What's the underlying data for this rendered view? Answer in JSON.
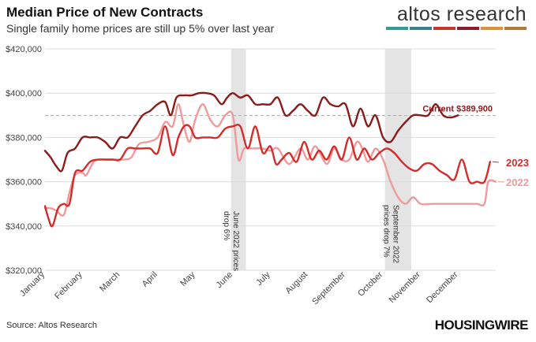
{
  "title": "Median Price of New Contracts",
  "subtitle": "Single family home prices are still up 5% over last year",
  "brand": {
    "name": "altos research",
    "bar_colors": [
      "#2e9e8f",
      "#3a7d8c",
      "#c0392b",
      "#8e1b2b",
      "#e0902e",
      "#b07a3a"
    ]
  },
  "source": "Source: Altos Research",
  "publisher": "HOUSINGWIRE",
  "chart_data": {
    "type": "line",
    "ylim": [
      320000,
      420000
    ],
    "y_ticks": [
      320000,
      340000,
      360000,
      380000,
      400000,
      420000
    ],
    "y_tick_labels": [
      "$320,000",
      "$340,000",
      "$360,000",
      "$380,000",
      "$400,000",
      "$420,000"
    ],
    "x_range": [
      0,
      12
    ],
    "x_unit": "month",
    "month_labels": [
      "January",
      "February",
      "March",
      "April",
      "May",
      "June",
      "July",
      "August",
      "September",
      "October",
      "November",
      "December"
    ],
    "grid": true,
    "reference_line": {
      "value": 389900,
      "label": "Current $389,900",
      "color": "#8b1a1a",
      "x_end": 11.02
    },
    "shaded_regions": [
      {
        "x0": 4.95,
        "x1": 5.35,
        "label": "June 2022 prices drop 6%"
      },
      {
        "x0": 9.05,
        "x1": 9.75,
        "label": "September 2022 prices drop 7%"
      }
    ],
    "series": [
      {
        "name": "2022",
        "color": "#f09a9a",
        "x": [
          0,
          0.15,
          0.3,
          0.5,
          0.65,
          0.8,
          1.0,
          1.1,
          1.3,
          1.5,
          1.7,
          1.9,
          2.1,
          2.3,
          2.5,
          2.75,
          3.0,
          3.2,
          3.4,
          3.55,
          3.7,
          3.85,
          4.0,
          4.2,
          4.4,
          4.6,
          4.8,
          5.0,
          5.15,
          5.3,
          5.5,
          5.8,
          6.0,
          6.2,
          6.5,
          6.8,
          7.0,
          7.2,
          7.5,
          7.7,
          7.9,
          8.1,
          8.3,
          8.45,
          8.6,
          8.8,
          9.0,
          9.2,
          9.4,
          9.6,
          9.8,
          10.0,
          10.3,
          10.6,
          11.0,
          11.3,
          11.5,
          11.7,
          11.8,
          12.0
        ],
        "values": [
          348000,
          348000,
          347000,
          345000,
          355000,
          363000,
          364000,
          363000,
          369000,
          370000,
          370000,
          370000,
          370000,
          371000,
          377000,
          378000,
          380000,
          387000,
          385000,
          395000,
          385000,
          378000,
          388000,
          395000,
          388000,
          385000,
          390000,
          390000,
          370000,
          375000,
          375000,
          375000,
          374000,
          375000,
          368000,
          375000,
          370000,
          376000,
          368000,
          375000,
          370000,
          370000,
          378000,
          375000,
          369000,
          375000,
          370000,
          360000,
          353000,
          350000,
          353000,
          350000,
          350000,
          350000,
          350000,
          350000,
          350000,
          350000,
          360000,
          360000
        ]
      },
      {
        "name": "2023",
        "color": "#d62b2b",
        "x": [
          0,
          0.1,
          0.2,
          0.35,
          0.5,
          0.65,
          0.8,
          1.0,
          1.2,
          1.4,
          1.6,
          1.8,
          2.0,
          2.2,
          2.4,
          2.6,
          2.8,
          3.0,
          3.2,
          3.4,
          3.55,
          3.7,
          3.85,
          4.0,
          4.2,
          4.4,
          4.6,
          4.8,
          5.0,
          5.2,
          5.4,
          5.6,
          5.8,
          6.0,
          6.15,
          6.3,
          6.5,
          6.7,
          6.9,
          7.1,
          7.3,
          7.5,
          7.7,
          7.9,
          8.1,
          8.3,
          8.5,
          8.7,
          8.9,
          9.1,
          9.3,
          9.5,
          9.7,
          9.9,
          10.1,
          10.3,
          10.5,
          10.7,
          10.9,
          11.1,
          11.3,
          11.5,
          11.7,
          11.85
        ],
        "values": [
          349000,
          343000,
          340000,
          348000,
          350000,
          350000,
          364000,
          365000,
          369000,
          370000,
          370000,
          370000,
          370000,
          375000,
          375000,
          375000,
          375000,
          373000,
          385000,
          372000,
          380000,
          385000,
          385000,
          380000,
          380000,
          380000,
          380000,
          384000,
          385000,
          385000,
          375000,
          385000,
          373000,
          376000,
          368000,
          370000,
          373000,
          369000,
          378000,
          370000,
          374000,
          370000,
          376000,
          370000,
          380000,
          370000,
          375000,
          370000,
          373000,
          375000,
          373000,
          369000,
          366000,
          365000,
          368000,
          368000,
          365000,
          363000,
          361000,
          370000,
          360000,
          360000,
          360000,
          369000
        ]
      },
      {
        "name": "",
        "color": "#8b1a1a",
        "x": [
          0,
          0.15,
          0.3,
          0.45,
          0.6,
          0.8,
          1.0,
          1.2,
          1.4,
          1.6,
          1.8,
          2.0,
          2.2,
          2.4,
          2.6,
          2.8,
          3.0,
          3.2,
          3.35,
          3.5,
          3.7,
          3.9,
          4.1,
          4.3,
          4.5,
          4.7,
          4.85,
          5.0,
          5.2,
          5.4,
          5.6,
          5.8,
          6.0,
          6.2,
          6.4,
          6.6,
          6.8,
          7.0,
          7.2,
          7.4,
          7.6,
          7.8,
          8.0,
          8.2,
          8.4,
          8.6,
          8.8,
          9.0,
          9.2,
          9.4,
          9.6,
          9.8,
          10.0,
          10.2,
          10.4,
          10.6,
          10.8,
          11.0
        ],
        "values": [
          374000,
          371000,
          367000,
          365000,
          373000,
          375000,
          380000,
          380000,
          380000,
          378000,
          375000,
          380000,
          380000,
          385000,
          390000,
          392000,
          395000,
          396000,
          390000,
          398000,
          399000,
          399000,
          400000,
          400000,
          399000,
          395000,
          398000,
          400000,
          398000,
          399000,
          395000,
          395000,
          395000,
          398000,
          390000,
          392000,
          395000,
          392000,
          390000,
          398000,
          395000,
          394000,
          395000,
          385000,
          393000,
          385000,
          390000,
          380000,
          378000,
          383000,
          387000,
          390000,
          390000,
          390000,
          395000,
          390000,
          389000,
          390000
        ]
      }
    ]
  }
}
